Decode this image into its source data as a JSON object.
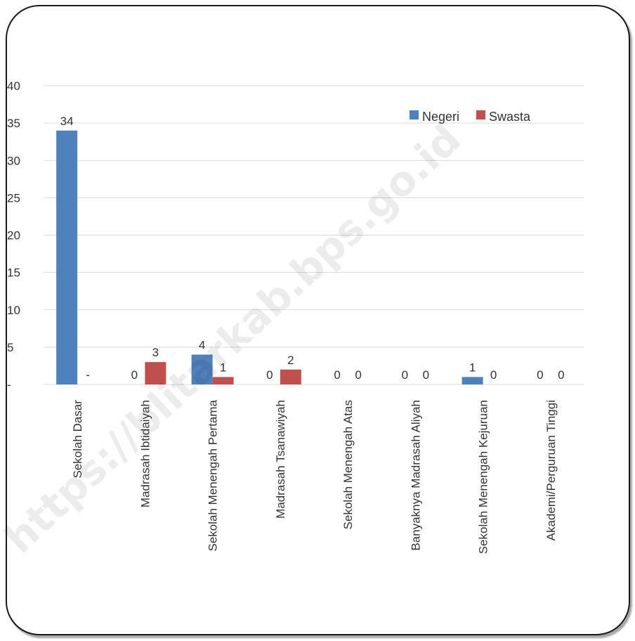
{
  "chart_data": {
    "type": "bar",
    "title": "",
    "xlabel": "",
    "ylabel": "",
    "categories": [
      "Sekolah Dasar",
      "Madrasah Ibtidaiyah",
      "Sekolah Menengah Pertama",
      "Madrasah Tsanawiyah",
      "Sekolah Menengah Atas",
      "Banyaknya Madrasah Aliyah",
      "Sekolah Menengah Kejuruan",
      "Akademi/Perguruan Tinggi"
    ],
    "series": [
      {
        "name": "Negeri",
        "color": "#4f81bd",
        "values": [
          34,
          0,
          4,
          0,
          0,
          0,
          1,
          0
        ],
        "labels": [
          "34",
          "0",
          "4",
          "0",
          "0",
          "0",
          "1",
          "0"
        ]
      },
      {
        "name": "Swasta",
        "color": "#c0504d",
        "values": [
          0,
          3,
          1,
          2,
          0,
          0,
          0,
          0
        ],
        "labels": [
          "-",
          "3",
          "1",
          "2",
          "0",
          "0",
          "0",
          "0"
        ]
      }
    ],
    "y_ticks": [
      "-",
      "5",
      "10",
      "15",
      "20",
      "25",
      "30",
      "35",
      "40"
    ],
    "ylim": [
      0,
      40
    ],
    "grid": true,
    "legend_position": "top-right"
  },
  "watermark": "https://blitarkab.bps.go.id"
}
